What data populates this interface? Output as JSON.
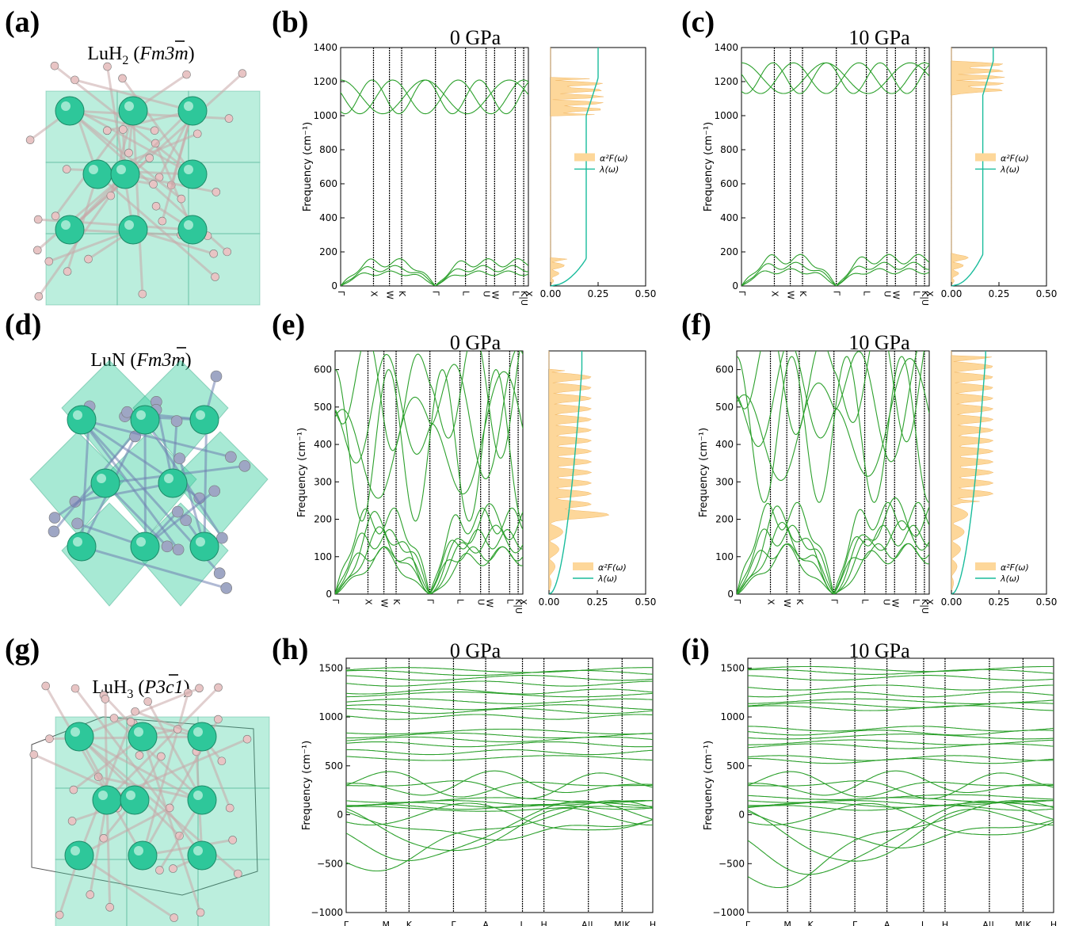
{
  "figure": {
    "panel_labels": [
      "(a)",
      "(b)",
      "(c)",
      "(d)",
      "(e)",
      "(f)",
      "(g)",
      "(h)",
      "(i)"
    ],
    "structures": [
      {
        "panel": "(a)",
        "formula": "LuH",
        "sub": "2",
        "group_prefix": " (",
        "group": "Fm3m",
        "group_suffix": ")"
      },
      {
        "panel": "(d)",
        "formula": "LuN",
        "sub": "",
        "group_prefix": " (",
        "group": "Fm3m",
        "group_suffix": ")"
      },
      {
        "panel": "(g)",
        "formula": "LuH",
        "sub": "3",
        "group_prefix": " (",
        "group": "P3c1",
        "group_suffix": ")"
      }
    ],
    "pressure_titles": [
      "0 GPa",
      "10 GPa",
      "0 GPa",
      "10 GPa",
      "0 GPa",
      "10 GPa"
    ],
    "ylabel": "Frequency (cm⁻¹)",
    "legend": {
      "a2f": "α²F(ω)",
      "lambda": "λ(ω)"
    },
    "colors": {
      "band": "#2ca02c",
      "a2f": "#fdd79a",
      "lambda": "#1abc9c",
      "lu_atom": "#2ec79a",
      "h_atom": "#e8c4c4",
      "n_atom": "#9ea6c4",
      "polyhedron": "#3ccf9f"
    }
  },
  "chart_data": [
    {
      "type": "line",
      "panel": "(b)",
      "title": "0 GPa",
      "ylabel": "Frequency (cm⁻¹)",
      "kpath": [
        "Γ",
        "X",
        "W",
        "K",
        "Γ",
        "L",
        "U",
        "W",
        "L",
        "K|U",
        "X"
      ],
      "ylim": [
        0,
        1400
      ],
      "yticks": [
        0,
        200,
        400,
        600,
        800,
        1000,
        1200,
        1400
      ],
      "acoustic_max_freq": 160,
      "optical_freq_range": [
        1000,
        1220
      ],
      "eliashberg": {
        "xlim": [
          0,
          0.5
        ],
        "xticks": [
          "0.00",
          "0.25",
          "0.50"
        ],
        "lambda_final": 0.25,
        "legend_loc": "center"
      }
    },
    {
      "type": "line",
      "panel": "(c)",
      "title": "10 GPa",
      "ylabel": "Frequency (cm⁻¹)",
      "kpath": [
        "Γ",
        "X",
        "W",
        "K",
        "Γ",
        "L",
        "U",
        "W",
        "L",
        "K|U",
        "X"
      ],
      "ylim": [
        0,
        1400
      ],
      "yticks": [
        0,
        200,
        400,
        600,
        800,
        1000,
        1200,
        1400
      ],
      "acoustic_max_freq": 185,
      "optical_freq_range": [
        1120,
        1320
      ],
      "eliashberg": {
        "xlim": [
          0,
          0.5
        ],
        "xticks": [
          "0.00",
          "0.25",
          "0.50"
        ],
        "lambda_final": 0.22,
        "legend_loc": "center"
      }
    },
    {
      "type": "line",
      "panel": "(e)",
      "title": "0 GPa",
      "ylabel": "Frequency (cm⁻¹)",
      "kpath": [
        "Γ",
        "X",
        "W",
        "K",
        "Γ",
        "L",
        "U",
        "W",
        "L",
        "K|U",
        "X"
      ],
      "ylim": [
        0,
        650
      ],
      "yticks": [
        0,
        100,
        200,
        300,
        400,
        500,
        600
      ],
      "acoustic_max_freq": 230,
      "optical_freq_range": [
        195,
        600
      ],
      "eliashberg": {
        "xlim": [
          0,
          0.5
        ],
        "xticks": [
          "0.00",
          "0.25",
          "0.50"
        ],
        "lambda_final": 0.17,
        "legend_loc": "lower right"
      }
    },
    {
      "type": "line",
      "panel": "(f)",
      "title": "10 GPa",
      "ylabel": "Frequency (cm⁻¹)",
      "kpath": [
        "Γ",
        "X",
        "W",
        "K",
        "Γ",
        "L",
        "U",
        "W",
        "L",
        "K|U",
        "X"
      ],
      "ylim": [
        0,
        650
      ],
      "yticks": [
        0,
        100,
        200,
        300,
        400,
        500,
        600
      ],
      "acoustic_max_freq": 245,
      "optical_freq_range": [
        245,
        635
      ],
      "eliashberg": {
        "xlim": [
          0,
          0.5
        ],
        "xticks": [
          "0.00",
          "0.25",
          "0.50"
        ],
        "lambda_final": 0.18,
        "legend_loc": "lower right"
      }
    },
    {
      "type": "line",
      "panel": "(h)",
      "title": "0 GPa",
      "ylabel": "Frequency (cm⁻¹)",
      "kpath": [
        "Γ",
        "M",
        "K",
        "Γ",
        "A",
        "L",
        "H",
        "A|L",
        "M|K",
        "H"
      ],
      "ylim": [
        -1000,
        1600
      ],
      "yticks": [
        -1000,
        -500,
        0,
        500,
        1000,
        1500
      ],
      "imaginary_min_freq": -700
    },
    {
      "type": "line",
      "panel": "(i)",
      "title": "10 GPa",
      "ylabel": "Frequency (cm⁻¹)",
      "kpath": [
        "Γ",
        "M",
        "K",
        "Γ",
        "A",
        "L",
        "H",
        "A|L",
        "M|K",
        "H"
      ],
      "ylim": [
        -1000,
        1600
      ],
      "yticks": [
        -1000,
        -500,
        0,
        500,
        1000,
        1500
      ],
      "imaginary_min_freq": -900
    }
  ]
}
